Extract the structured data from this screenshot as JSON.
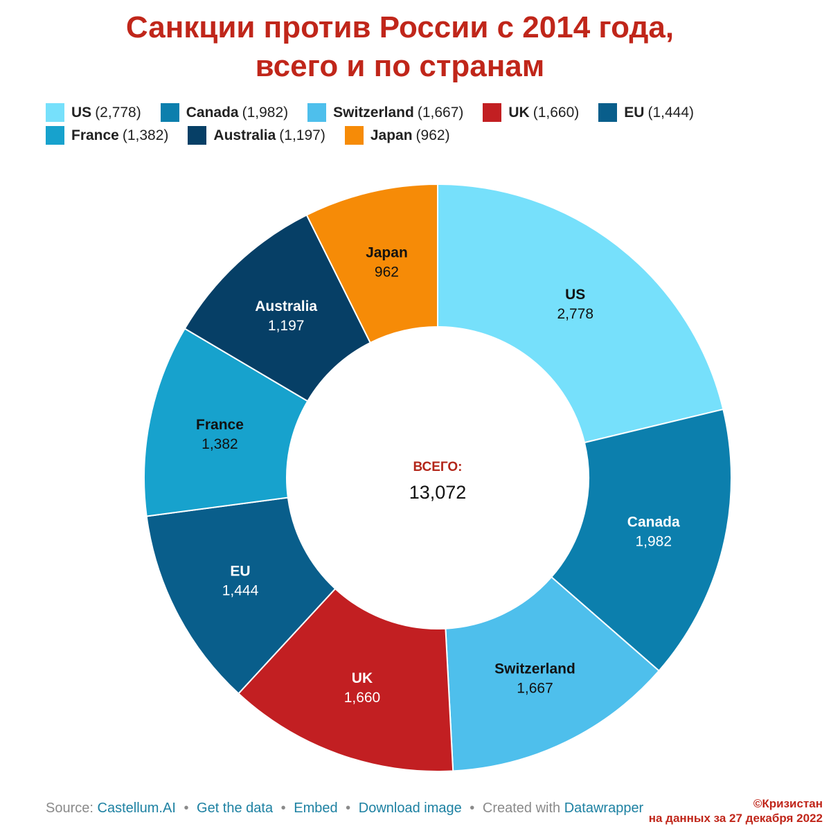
{
  "title": {
    "line1": "Санкции против России с 2014 года,",
    "line2": "всего и по странам"
  },
  "chart_data": {
    "type": "pie",
    "categories": [
      "US",
      "Canada",
      "Switzerland",
      "UK",
      "EU",
      "France",
      "Australia",
      "Japan"
    ],
    "values": [
      2778,
      1982,
      1667,
      1660,
      1444,
      1382,
      1197,
      962
    ],
    "value_labels": [
      "2,778",
      "1,982",
      "1,667",
      "1,660",
      "1,444",
      "1,382",
      "1,197",
      "962"
    ],
    "colors": [
      "#76e0fb",
      "#0c7fad",
      "#4ebfec",
      "#c21f22",
      "#095e8b",
      "#17a2cd",
      "#063f66",
      "#f68b07"
    ],
    "label_colors": [
      "#111111",
      "#ffffff",
      "#111111",
      "#ffffff",
      "#ffffff",
      "#111111",
      "#ffffff",
      "#111111"
    ],
    "donut": true,
    "center_label": "ВСЕГО:",
    "center_value": "13,072",
    "legend_position": "top"
  },
  "legend": {
    "rows": [
      [
        {
          "label": "US",
          "value": "(2,778)",
          "color": "#76e0fb"
        },
        {
          "label": "Canada",
          "value": "(1,982)",
          "color": "#0c7fad"
        },
        {
          "label": "Switzerland",
          "value": "(1,667)",
          "color": "#4ebfec"
        },
        {
          "label": "UK",
          "value": "(1,660)",
          "color": "#c21f22"
        },
        {
          "label": "EU",
          "value": "(1,444)",
          "color": "#095e8b"
        }
      ],
      [
        {
          "label": "France",
          "value": "(1,382)",
          "color": "#17a2cd"
        },
        {
          "label": "Australia",
          "value": "(1,197)",
          "color": "#063f66"
        },
        {
          "label": "Japan",
          "value": "(962)",
          "color": "#f68b07"
        }
      ]
    ]
  },
  "footer": {
    "source_prefix": "Source:",
    "source_link": "Castellum.AI",
    "get_data": "Get the data",
    "embed": "Embed",
    "download": "Download image",
    "created_with": "Created with",
    "datawrapper": "Datawrapper",
    "separator": "•"
  },
  "credit": {
    "line1": "©Кризистан",
    "line2": "на данных за 27 декабря 2022"
  }
}
